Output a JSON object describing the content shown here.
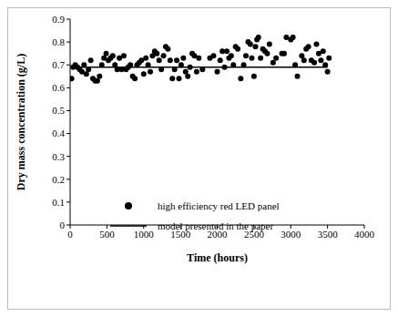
{
  "chart_data": {
    "type": "scatter",
    "x_label": "Time (hours)",
    "y_label": "Dry mass concentration (g/L)",
    "xlim": [
      0,
      4000
    ],
    "xticks": [
      0,
      500,
      1000,
      1500,
      2000,
      2500,
      3000,
      3500,
      4000
    ],
    "ylim": [
      0,
      0.9
    ],
    "yticks": [
      0,
      0.1,
      0.2,
      0.3,
      0.4,
      0.5,
      0.6,
      0.7,
      0.8,
      0.9
    ],
    "grid": false,
    "legend": "lower left",
    "series": [
      {
        "name": "high efficiency red LED panel",
        "type": "scatter",
        "marker": "circle",
        "color": "#000000",
        "x": [
          20,
          40,
          70,
          100,
          130,
          160,
          190,
          220,
          250,
          280,
          310,
          340,
          370,
          400,
          430,
          460,
          490,
          520,
          550,
          580,
          610,
          640,
          670,
          700,
          730,
          760,
          790,
          820,
          850,
          880,
          910,
          940,
          970,
          1000,
          1030,
          1060,
          1090,
          1120,
          1150,
          1180,
          1210,
          1240,
          1270,
          1300,
          1330,
          1360,
          1390,
          1420,
          1450,
          1480,
          1510,
          1540,
          1570,
          1600,
          1630,
          1660,
          1690,
          1720,
          1750,
          1800,
          1900,
          1950,
          2000,
          2040,
          2070,
          2100,
          2130,
          2160,
          2190,
          2220,
          2250,
          2280,
          2320,
          2360,
          2390,
          2420,
          2450,
          2470,
          2500,
          2520,
          2540,
          2560,
          2590,
          2620,
          2650,
          2680,
          2710,
          2760,
          2800,
          2880,
          2910,
          2940,
          3000,
          3030,
          3060,
          3090,
          3150,
          3180,
          3210,
          3240,
          3280,
          3320,
          3350,
          3380,
          3410,
          3440,
          3470,
          3500,
          3520
        ],
        "values": [
          0.64,
          0.69,
          0.7,
          0.69,
          0.68,
          0.67,
          0.7,
          0.66,
          0.68,
          0.72,
          0.64,
          0.63,
          0.63,
          0.65,
          0.7,
          0.73,
          0.75,
          0.72,
          0.73,
          0.74,
          0.7,
          0.68,
          0.73,
          0.68,
          0.74,
          0.68,
          0.69,
          0.7,
          0.65,
          0.64,
          0.7,
          0.71,
          0.72,
          0.66,
          0.73,
          0.7,
          0.67,
          0.74,
          0.76,
          0.75,
          0.72,
          0.68,
          0.74,
          0.78,
          0.77,
          0.72,
          0.64,
          0.68,
          0.72,
          0.64,
          0.7,
          0.73,
          0.67,
          0.65,
          0.69,
          0.75,
          0.74,
          0.67,
          0.73,
          0.68,
          0.73,
          0.74,
          0.67,
          0.72,
          0.76,
          0.69,
          0.76,
          0.73,
          0.74,
          0.7,
          0.78,
          0.77,
          0.64,
          0.7,
          0.74,
          0.8,
          0.79,
          0.73,
          0.65,
          0.78,
          0.81,
          0.82,
          0.73,
          0.77,
          0.76,
          0.75,
          0.79,
          0.71,
          0.73,
          0.75,
          0.75,
          0.82,
          0.81,
          0.82,
          0.7,
          0.65,
          0.74,
          0.72,
          0.77,
          0.78,
          0.72,
          0.71,
          0.79,
          0.75,
          0.72,
          0.76,
          0.7,
          0.67,
          0.73
        ]
      },
      {
        "name": "model presented in the paper",
        "type": "line",
        "line_style": "solid",
        "color": "#000000",
        "x": [
          0,
          3500
        ],
        "values": [
          0.69,
          0.69
        ]
      }
    ]
  }
}
